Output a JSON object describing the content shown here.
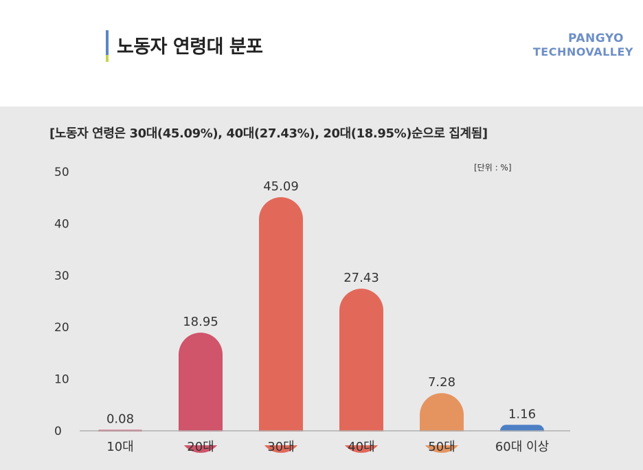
{
  "header": {
    "title": "노동자 연령대 분포",
    "logo_line1": "PANGYO",
    "logo_line2": "TECHNOVALLEY",
    "accent_blue": "#5b86c4",
    "accent_green": "#c5d44a",
    "logo_color": "#6e8fc6"
  },
  "panel": {
    "background": "#e9e9e9",
    "subtitle": "[노동자 연령은 30대(45.09%), 40대(27.43%), 20대(18.95%)순으로 집계됨]",
    "unit_label": "[단위 : %]"
  },
  "chart_data": {
    "type": "bar",
    "title": "",
    "xlabel": "",
    "ylabel": "",
    "ylim": [
      0,
      50
    ],
    "yticks": [
      0,
      10,
      20,
      30,
      40,
      50
    ],
    "grid": false,
    "categories": [
      "10대",
      "20대",
      "30대",
      "40대",
      "50대",
      "60대 이상"
    ],
    "values": [
      0.08,
      18.95,
      45.09,
      27.43,
      7.28,
      1.16
    ],
    "value_labels": [
      "0.08",
      "18.95",
      "45.09",
      "27.43",
      "7.28",
      "1.16"
    ],
    "colors": [
      "#d4506a",
      "#d0546a",
      "#e2695a",
      "#e2695a",
      "#e59460",
      "#4d7fc4"
    ]
  }
}
